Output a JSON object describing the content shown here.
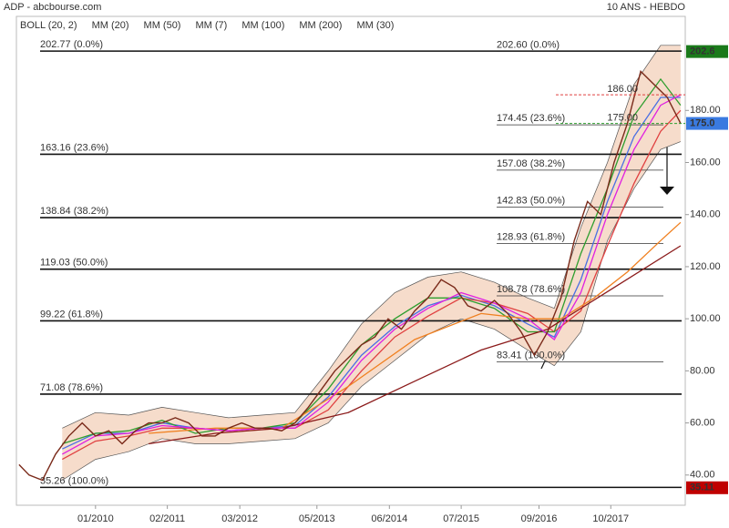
{
  "chart_data": {
    "type": "line",
    "title": "ADP - abcbourse.com",
    "subtitle": "10 ANS - HEBDO",
    "xlim": [
      2008.81,
      2018.87
    ],
    "ylim": [
      28.4,
      216.1
    ],
    "xticks": [
      {
        "value": 2010.0,
        "label": "01/2010"
      },
      {
        "value": 2011.08,
        "label": "02/2011"
      },
      {
        "value": 2012.17,
        "label": "03/2012"
      },
      {
        "value": 2013.33,
        "label": "05/2013"
      },
      {
        "value": 2014.42,
        "label": "06/2014"
      },
      {
        "value": 2015.5,
        "label": "07/2015"
      },
      {
        "value": 2016.67,
        "label": "09/2016"
      },
      {
        "value": 2017.75,
        "label": "10/2017"
      }
    ],
    "yticks": [
      {
        "value": 40,
        "label": "40.00"
      },
      {
        "value": 60,
        "label": "60.00"
      },
      {
        "value": 80,
        "label": "80.00"
      },
      {
        "value": 100,
        "label": "100.00"
      },
      {
        "value": 120,
        "label": "120.00"
      },
      {
        "value": 140,
        "label": "140.00"
      },
      {
        "value": 160,
        "label": "160.00"
      },
      {
        "value": 180,
        "label": "180.00"
      }
    ],
    "price": {
      "color": "#7a2a1a",
      "x": [
        2008.85,
        2009.0,
        2009.2,
        2009.4,
        2009.6,
        2009.8,
        2010.0,
        2010.2,
        2010.4,
        2010.6,
        2010.8,
        2011.0,
        2011.2,
        2011.4,
        2011.6,
        2011.8,
        2012.0,
        2012.2,
        2012.4,
        2012.6,
        2012.8,
        2013.0,
        2013.2,
        2013.4,
        2013.6,
        2013.8,
        2014.0,
        2014.2,
        2014.4,
        2014.6,
        2014.8,
        2015.0,
        2015.2,
        2015.4,
        2015.6,
        2015.8,
        2016.0,
        2016.2,
        2016.4,
        2016.6,
        2016.8,
        2017.0,
        2017.2,
        2017.4,
        2017.6,
        2017.8,
        2018.0,
        2018.2,
        2018.4,
        2018.6,
        2018.8
      ],
      "values": [
        44,
        40,
        38,
        48,
        55,
        60,
        55,
        57,
        52,
        57,
        60,
        60,
        62,
        60,
        55,
        55,
        58,
        60,
        58,
        58,
        57,
        60,
        66,
        73,
        80,
        85,
        90,
        93,
        100,
        96,
        103,
        108,
        115,
        112,
        105,
        103,
        107,
        102,
        95,
        86,
        95,
        108,
        130,
        145,
        140,
        160,
        175,
        195,
        190,
        185,
        175
      ]
    },
    "bollinger": {
      "name": "BOLL (20, 2)",
      "color": "#555555",
      "fill": "#f6dccb",
      "x": [
        2009.5,
        2010,
        2010.5,
        2011,
        2011.5,
        2012,
        2012.5,
        2013,
        2013.5,
        2014,
        2014.5,
        2015,
        2015.5,
        2016,
        2016.5,
        2016.9,
        2017.3,
        2017.7,
        2018.1,
        2018.5,
        2018.8
      ],
      "upper": [
        58,
        64,
        63,
        66,
        64,
        62,
        63,
        64,
        80,
        98,
        110,
        116,
        118,
        114,
        108,
        104,
        135,
        160,
        190,
        205,
        205
      ],
      "lower": [
        38,
        46,
        49,
        54,
        52,
        52,
        53,
        54,
        60,
        74,
        84,
        94,
        100,
        96,
        88,
        82,
        95,
        130,
        150,
        165,
        168
      ]
    },
    "series": [
      {
        "name": "MM (20)",
        "color": "#4a6fe3",
        "x": [
          2009.5,
          2010,
          2010.5,
          2011,
          2011.5,
          2012,
          2012.5,
          2013,
          2013.5,
          2014,
          2014.5,
          2015,
          2015.5,
          2016,
          2016.5,
          2016.9,
          2017.3,
          2017.7,
          2018.1,
          2018.5,
          2018.8
        ],
        "values": [
          50,
          56,
          56,
          60,
          58,
          57,
          58,
          59,
          70,
          86,
          97,
          105,
          109,
          105,
          98,
          93,
          115,
          145,
          170,
          185,
          185
        ]
      },
      {
        "name": "MM (50)",
        "color": "#e04040",
        "x": [
          2009.5,
          2010,
          2010.5,
          2011,
          2011.5,
          2012,
          2012.5,
          2013,
          2013.5,
          2014,
          2014.5,
          2015,
          2015.5,
          2016,
          2016.5,
          2016.9,
          2017.3,
          2017.7,
          2018.1,
          2018.5,
          2018.8
        ],
        "values": [
          46,
          53,
          55,
          58,
          58,
          57,
          58,
          58,
          65,
          80,
          93,
          101,
          108,
          106,
          102,
          95,
          103,
          128,
          152,
          172,
          180
        ]
      },
      {
        "name": "MM (7)",
        "color": "#2e9e2e",
        "x": [
          2009.5,
          2010,
          2010.5,
          2011,
          2011.5,
          2012,
          2012.5,
          2013,
          2013.5,
          2014,
          2014.5,
          2015,
          2015.5,
          2016,
          2016.5,
          2016.9,
          2017.3,
          2017.7,
          2018.1,
          2018.5,
          2018.8
        ],
        "values": [
          52,
          56,
          57,
          61,
          56,
          58,
          58,
          60,
          73,
          90,
          100,
          108,
          108,
          104,
          95,
          95,
          125,
          150,
          178,
          192,
          182
        ]
      },
      {
        "name": "MM (100)",
        "color": "#f08020",
        "x": [
          2010.8,
          2011.8,
          2012.8,
          2013.8,
          2014.8,
          2015.8,
          2016.5,
          2017.0,
          2017.5,
          2018.0,
          2018.5,
          2018.8
        ],
        "values": [
          56,
          58,
          58,
          74,
          92,
          102,
          100,
          100,
          108,
          118,
          130,
          137
        ]
      },
      {
        "name": "MM (200)",
        "color": "#8b1a1a",
        "x": [
          2010.8,
          2011.8,
          2012.8,
          2013.8,
          2014.8,
          2015.8,
          2016.8,
          2017.8,
          2018.8
        ],
        "values": [
          52,
          56,
          58,
          64,
          76,
          88,
          96,
          112,
          128
        ]
      },
      {
        "name": "MM (30)",
        "color": "#e020e0",
        "x": [
          2009.5,
          2010,
          2010.5,
          2011,
          2011.5,
          2012,
          2012.5,
          2013,
          2013.5,
          2014,
          2014.5,
          2015,
          2015.5,
          2016,
          2016.5,
          2016.9,
          2017.3,
          2017.7,
          2018.1,
          2018.5,
          2018.8
        ],
        "values": [
          48,
          55,
          56,
          59,
          58,
          57,
          58,
          58,
          68,
          84,
          96,
          104,
          110,
          106,
          100,
          92,
          110,
          140,
          165,
          182,
          186
        ]
      }
    ],
    "fib_long": [
      {
        "value": 202.77,
        "label": "202.77  (0.0%)"
      },
      {
        "value": 163.16,
        "label": "163.16  (23.6%)"
      },
      {
        "value": 138.84,
        "label": "138.84  (38.2%)"
      },
      {
        "value": 119.03,
        "label": "119.03  (50.0%)"
      },
      {
        "value": 99.22,
        "label": "99.22  (61.8%)"
      },
      {
        "value": 71.08,
        "label": "71.08  (78.6%)"
      },
      {
        "value": 35.26,
        "label": "35.26  (100.0%)"
      }
    ],
    "fib_short": [
      {
        "value": 202.6,
        "label": "202.60  (0.0%)"
      },
      {
        "value": 174.45,
        "label": "174.45  (23.6%)"
      },
      {
        "value": 157.08,
        "label": "157.08  (38.2%)"
      },
      {
        "value": 142.83,
        "label": "142.83  (50.0%)"
      },
      {
        "value": 128.93,
        "label": "128.93  (61.8%)"
      },
      {
        "value": 108.78,
        "label": "108.78  (78.6%)"
      },
      {
        "value": 83.41,
        "label": "83.41  (100.0%)"
      }
    ],
    "levels": [
      {
        "value": 175,
        "label": "175.00",
        "color": "#2e9e2e"
      },
      {
        "value": 186,
        "label": "186.00",
        "color": "#e04040"
      }
    ],
    "price_tags": [
      {
        "value": 202.6,
        "label": "202.6",
        "color": "#1a7a1a"
      },
      {
        "value": 175.0,
        "label": "175.0",
        "color": "#3a7ae0"
      },
      {
        "value": 35.11,
        "label": "35.11",
        "color": "#c00000"
      }
    ]
  }
}
